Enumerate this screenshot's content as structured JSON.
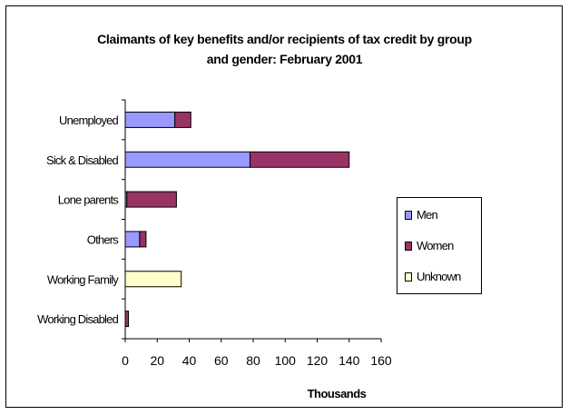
{
  "chart_data": {
    "type": "bar",
    "orientation": "horizontal",
    "stacked": true,
    "title": "Claimants of key benefits and/or recipients of tax credit by group and gender: February 2001",
    "title_lines": [
      "Claimants of key benefits and/or recipients of tax credit by group",
      "and gender: February 2001"
    ],
    "xlabel": "Thousands",
    "ylabel": "",
    "xlim": [
      0,
      160
    ],
    "xticks": [
      0,
      20,
      40,
      60,
      80,
      100,
      120,
      140,
      160
    ],
    "grid": false,
    "legend_position": "right",
    "categories": [
      "Unemployed",
      "Sick & Disabled",
      "Lone parents",
      "Others",
      "Working Family",
      "Working Disabled"
    ],
    "series": [
      {
        "name": "Men",
        "color": "#9999ff",
        "values": [
          31,
          78,
          1,
          9,
          0,
          0
        ]
      },
      {
        "name": "Women",
        "color": "#993366",
        "values": [
          10,
          62,
          31,
          4,
          0,
          2
        ]
      },
      {
        "name": "Unknown",
        "color": "#ffffcc",
        "values": [
          0,
          0,
          0,
          0,
          35,
          0
        ]
      }
    ]
  }
}
